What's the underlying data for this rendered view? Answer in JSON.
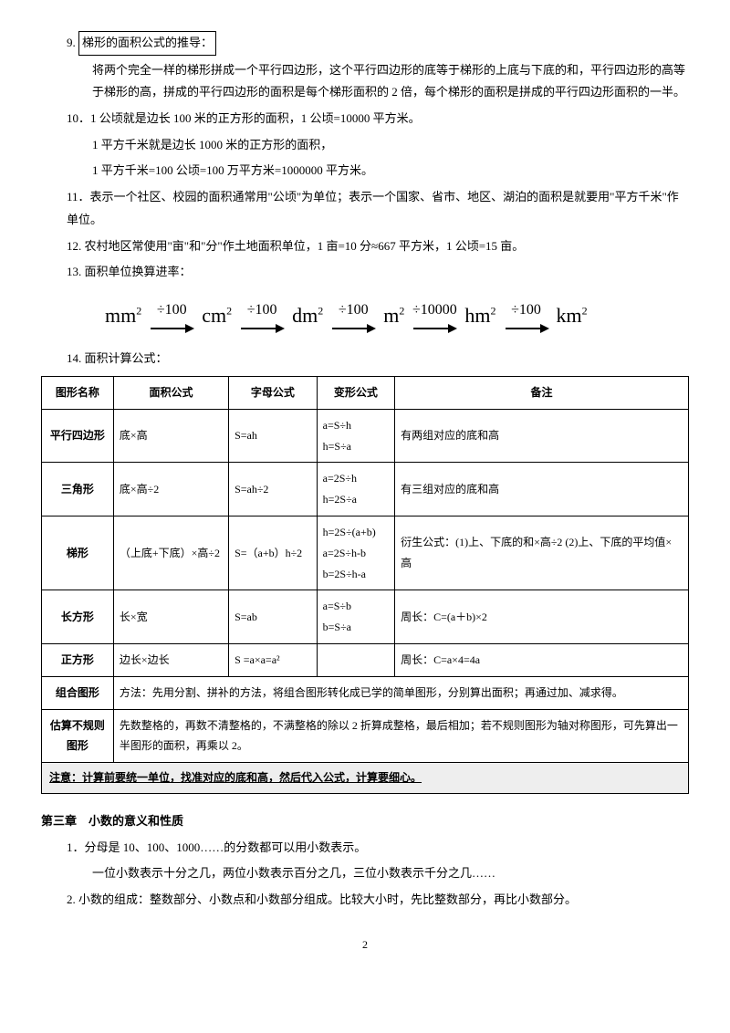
{
  "p9_label": "9.",
  "p9_title": "梯形的面积公式的推导：",
  "p9_body": "将两个完全一样的梯形拼成一个平行四边形，这个平行四边形的底等于梯形的上底与下底的和，平行四边形的高等于梯形的高，拼成的平行四边形的面积是每个梯形面积的 2 倍，每个梯形的面积是拼成的平行四边形面积的一半。",
  "p10a": "10．1 公顷就是边长 100 米的正方形的面积，1 公顷=10000 平方米。",
  "p10b": "1 平方千米就是边长 1000 米的正方形的面积，",
  "p10c": "1 平方千米=100 公顷=100 万平方米=1000000 平方米。",
  "p11": "11．表示一个社区、校园的面积通常用\"公顷\"为单位；表示一个国家、省市、地区、湖泊的面积是就要用\"平方千米\"作单位。",
  "p12": "12. 农村地区常使用\"亩\"和\"分\"作土地面积单位，1 亩=10 分≈667 平方米，1 公顷=15 亩。",
  "p13": "13. 面积单位换算进率：",
  "conv": {
    "units": [
      "mm",
      "cm",
      "dm",
      "m",
      "hm",
      "km"
    ],
    "exp": "2",
    "labels": [
      "÷100",
      "÷100",
      "÷100",
      "÷10000",
      "÷100"
    ],
    "arrow_stroke": "#000",
    "arrow_width": 2
  },
  "p14": "14. 面积计算公式：",
  "table": {
    "headers": [
      "图形名称",
      "面积公式",
      "字母公式",
      "变形公式",
      "备注"
    ],
    "rows": [
      {
        "name": "平行四边形",
        "formula": "底×高",
        "letter": "S=ah",
        "variant": "a=S÷h\nh=S÷a",
        "note": "有两组对应的底和高"
      },
      {
        "name": "三角形",
        "formula": "底×高÷2",
        "letter": "S=ah÷2",
        "variant": "a=2S÷h\nh=2S÷a",
        "note": "有三组对应的底和高"
      },
      {
        "name": "梯形",
        "formula": "（上底+下底）×高÷2",
        "letter": "S=（a+b）h÷2",
        "variant": "h=2S÷(a+b)\na=2S÷h-b\nb=2S÷h-a",
        "note": "衍生公式：(1)上、下底的和×高÷2 (2)上、下底的平均值×高"
      },
      {
        "name": "长方形",
        "formula": "长×宽",
        "letter": "S=ab",
        "variant": "a=S÷b\nb=S÷a",
        "note": "周长：C=(a＋b)×2"
      },
      {
        "name": "正方形",
        "formula": "边长×边长",
        "letter": "S =a×a=a²",
        "variant": "",
        "note": "周长：C=a×4=4a"
      }
    ],
    "combo_name": "组合图形",
    "combo_text": "方法：先用分割、拼补的方法，将组合图形转化成已学的简单图形，分别算出面积；再通过加、减求得。",
    "est_name": "估算不规则图形",
    "est_text": "先数整格的，再数不清整格的，不满整格的除以 2 折算成整格，最后相加；若不规则图形为轴对称图形，可先算出一半图形的面积，再乘以 2。",
    "note": "注意：计算前要统一单位，找准对应的底和高，然后代入公式，计算要细心。"
  },
  "sec3_title": "第三章　小数的意义和性质",
  "sec3_p1": "1．分母是 10、100、1000……的分数都可以用小数表示。",
  "sec3_p1b": "一位小数表示十分之几，两位小数表示百分之几，三位小数表示千分之几……",
  "sec3_p2": "2. 小数的组成：整数部分、小数点和小数部分组成。比较大小时，先比整数部分，再比小数部分。",
  "page_number": "2"
}
